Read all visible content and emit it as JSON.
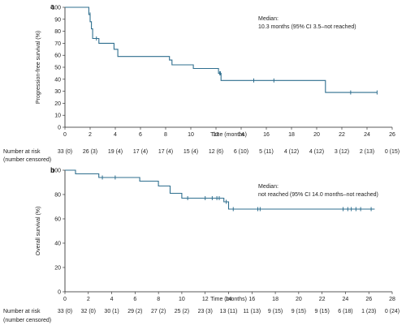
{
  "figure": {
    "accent_color": "#2f6f8f",
    "text_color": "#222222"
  },
  "chart_data": [
    {
      "type": "line",
      "panel_label": "a",
      "ylabel": "Progression-free survival (%)",
      "xlabel": "Time (months)",
      "xlim": [
        0,
        26
      ],
      "ylim": [
        0,
        100
      ],
      "x_ticks": [
        0,
        2,
        4,
        6,
        8,
        10,
        12,
        14,
        16,
        18,
        20,
        22,
        24,
        26
      ],
      "y_ticks": [
        0,
        10,
        20,
        30,
        40,
        50,
        60,
        70,
        80,
        90,
        100
      ],
      "grid": false,
      "annotation": [
        "Median:",
        "10.3 months (95% CI 3.5–not reached)"
      ],
      "series": [
        {
          "step_x": [
            0,
            1.9,
            1.9,
            2.0,
            2.0,
            2.1,
            2.1,
            2.2,
            2.2,
            2.7,
            2.7,
            3.9,
            3.9,
            4.2,
            4.2,
            8.3,
            8.3,
            8.5,
            8.5,
            10.2,
            10.2,
            12.2,
            12.2,
            12.4,
            12.4,
            20.7,
            20.7,
            24.8
          ],
          "step_y": [
            100,
            100,
            94,
            94,
            88,
            88,
            82,
            82,
            74,
            74,
            70,
            70,
            65,
            65,
            59,
            59,
            56,
            56,
            52,
            52,
            49,
            49,
            45,
            45,
            39,
            39,
            29,
            29
          ],
          "censor_x": [
            2.0,
            2.5,
            12.3,
            12.35,
            15.0,
            16.6,
            22.7,
            24.8
          ],
          "censor_y": [
            94,
            74,
            45,
            45,
            39,
            39,
            29,
            29
          ]
        }
      ],
      "risk_table": {
        "label_line1": "Number at risk",
        "label_line2": "(number censored)",
        "times": [
          0,
          2,
          4,
          6,
          8,
          10,
          12,
          14,
          16,
          18,
          20,
          22,
          24,
          26
        ],
        "values": [
          "33 (0)",
          "26 (3)",
          "19 (4)",
          "17 (4)",
          "17 (4)",
          "15 (4)",
          "12 (6)",
          "6 (10)",
          "5 (11)",
          "4 (12)",
          "4 (12)",
          "3 (12)",
          "2 (13)",
          "0 (15)"
        ]
      }
    },
    {
      "type": "line",
      "panel_label": "b",
      "ylabel": "Overall survival (%)",
      "xlabel": "Time (months)",
      "xlim": [
        0,
        28
      ],
      "ylim": [
        0,
        100
      ],
      "x_ticks": [
        0,
        2,
        4,
        6,
        8,
        10,
        12,
        14,
        16,
        18,
        20,
        22,
        24,
        26,
        28
      ],
      "y_ticks": [
        0,
        20,
        40,
        60,
        80,
        100
      ],
      "grid": false,
      "annotation": [
        "Median:",
        "not reached (95% CI 14.0 months–not reached)"
      ],
      "series": [
        {
          "step_x": [
            0,
            0.9,
            0.9,
            2.9,
            2.9,
            6.4,
            6.4,
            8.0,
            8.0,
            9.0,
            9.0,
            10.0,
            10.0,
            13.6,
            13.6,
            14.0,
            14.0,
            26.5
          ],
          "step_y": [
            100,
            100,
            97,
            97,
            94,
            94,
            91,
            91,
            87,
            87,
            81,
            81,
            77,
            77,
            74,
            74,
            68,
            68
          ],
          "censor_x": [
            3.2,
            4.3,
            10.5,
            12.0,
            12.6,
            13.0,
            13.2,
            13.8,
            14.4,
            16.5,
            16.7,
            23.8,
            24.2,
            24.5,
            24.9,
            25.3,
            26.2
          ],
          "censor_y": [
            94,
            94,
            77,
            77,
            77,
            77,
            77,
            74,
            68,
            68,
            68,
            68,
            68,
            68,
            68,
            68,
            68
          ]
        }
      ],
      "risk_table": {
        "label_line1": "Number at risk",
        "label_line2": "(number censored)",
        "times": [
          0,
          2,
          4,
          6,
          8,
          10,
          12,
          14,
          16,
          18,
          20,
          22,
          24,
          26,
          28
        ],
        "values": [
          "33 (0)",
          "32 (0)",
          "30 (1)",
          "29 (2)",
          "27 (2)",
          "25 (2)",
          "23 (3)",
          "13 (11)",
          "11 (13)",
          "9 (15)",
          "9 (15)",
          "9 (15)",
          "6 (18)",
          "1 (23)",
          "0 (24)"
        ]
      }
    }
  ]
}
